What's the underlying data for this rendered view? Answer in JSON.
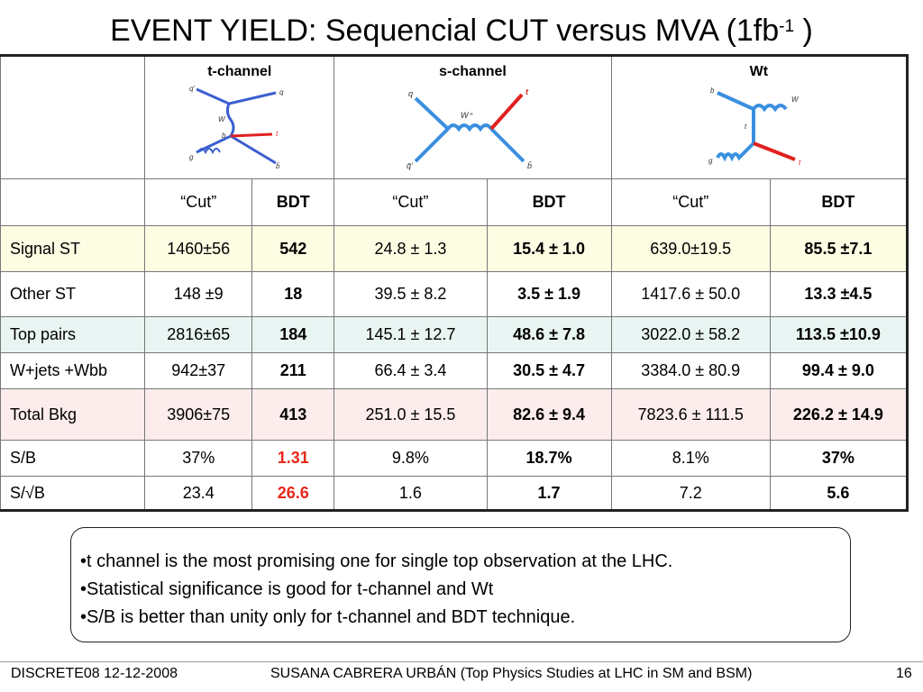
{
  "title": {
    "main": "EVENT YIELD: Sequencial CUT versus MVA (1fb",
    "sup": "-1",
    "tail": " )"
  },
  "channels": [
    {
      "name": "t-channel",
      "diagram": "t-channel-feynman-diagram"
    },
    {
      "name": "s-channel",
      "diagram": "s-channel-feynman-diagram"
    },
    {
      "name": "Wt",
      "diagram": "wt-feynman-diagram"
    }
  ],
  "diagram_labels": {
    "t": {
      "q1": "q'",
      "q2": "q",
      "w": "W",
      "b": "b",
      "t": "t",
      "g": "g",
      "bbar": "b̄"
    },
    "s": {
      "q": "q",
      "t": "t",
      "w": "W⁺",
      "qbar": "q̄'",
      "bbar": "b̄"
    },
    "wt": {
      "b": "b",
      "w": "W",
      "t": "t",
      "g": "g",
      "t2": "t"
    }
  },
  "subheaders": [
    "“Cut”",
    "BDT",
    "“Cut”",
    "BDT",
    "“Cut”",
    "BDT"
  ],
  "rows": [
    {
      "label": "Signal ST",
      "bg": "yellow",
      "cells": [
        "1460±56",
        "542",
        "24.8 ± 1.3",
        "15.4 ± 1.0",
        "639.0±19.5",
        "85.5 ±7.1"
      ]
    },
    {
      "label": "Other ST",
      "bg": "white",
      "cells": [
        "148 ±9",
        "18",
        "39.5 ± 8.2",
        "3.5 ± 1.9",
        "1417.6 ± 50.0",
        "13.3 ±4.5"
      ]
    },
    {
      "label": "Top pairs",
      "bg": "green",
      "cells": [
        "2816±65",
        "184",
        "145.1 ± 12.7",
        "48.6 ± 7.8",
        "3022.0 ± 58.2",
        "113.5 ±10.9"
      ]
    },
    {
      "label": "W+jets +Wbb",
      "bg": "white",
      "cells": [
        "942±37",
        "211",
        "66.4 ± 3.4",
        "30.5 ± 4.7",
        "3384.0 ± 80.9",
        "99.4 ± 9.0"
      ]
    },
    {
      "label": "Total Bkg",
      "bg": "pink",
      "cells": [
        "3906±75",
        "413",
        "251.0 ± 15.5",
        "82.6 ± 9.4",
        "7823.6 ± 111.5",
        "226.2 ± 14.9"
      ]
    },
    {
      "label": "S/B",
      "bg": "white",
      "cells": [
        "37%",
        "1.31",
        "9.8%",
        "18.7%",
        "8.1%",
        "37%"
      ]
    },
    {
      "label": "S/√B",
      "bg": "white",
      "cells": [
        "23.4",
        "26.6",
        "1.6",
        "1.7",
        "7.2",
        "5.6"
      ]
    }
  ],
  "highlight_color": "#e8261a",
  "notes": [
    "•t channel is the most promising one for single top observation at the LHC.",
    "•Statistical significance is good for t-channel and Wt",
    "•S/B is better than unity only for t-channel and BDT technique."
  ],
  "footer": {
    "left": "DISCRETE08 12-12-2008",
    "center": "SUSANA CABRERA URBÁN (Top Physics Studies at LHC in SM and BSM)",
    "page": "16"
  }
}
